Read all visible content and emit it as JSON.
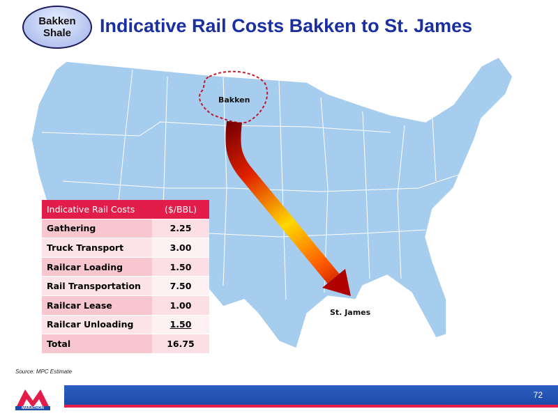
{
  "badge": "Bakken Shale",
  "title": "Indicative Rail Costs Bakken to St. James",
  "map": {
    "origin": "Bakken",
    "destination": "St. James"
  },
  "table": {
    "header": [
      "Indicative Rail Costs",
      "($/BBL)"
    ],
    "rows": [
      [
        "Gathering",
        "2.25"
      ],
      [
        "Truck Transport",
        "3.00"
      ],
      [
        "Railcar Loading",
        "1.50"
      ],
      [
        "Rail Transportation",
        "7.50"
      ],
      [
        "Railcar Lease",
        "1.00"
      ],
      [
        "Railcar Unloading",
        "1.50"
      ],
      [
        "Total",
        "16.75"
      ]
    ]
  },
  "source": "Source: MPC Estimate",
  "logo": "MARATHON",
  "page_number": "72"
}
